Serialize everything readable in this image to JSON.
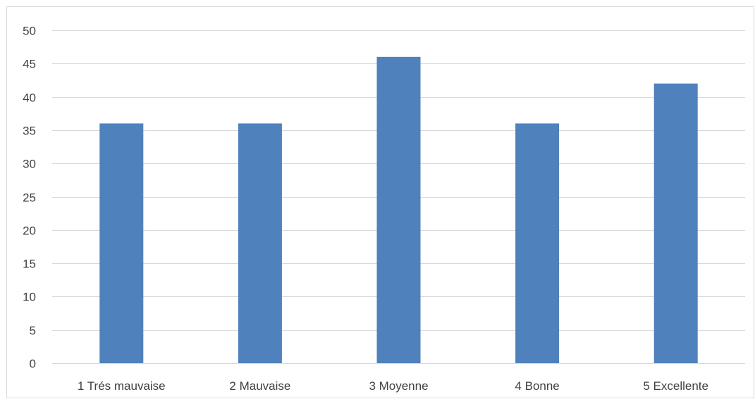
{
  "chart_data": {
    "type": "bar",
    "categories": [
      "1 Trés mauvaise",
      "2 Mauvaise",
      "3 Moyenne",
      "4 Bonne",
      "5 Excellente"
    ],
    "values": [
      36,
      36,
      46,
      36,
      42
    ],
    "ylim": [
      0,
      50
    ],
    "yticks": [
      0,
      5,
      10,
      15,
      20,
      25,
      30,
      35,
      40,
      45,
      50
    ],
    "grid": true,
    "legend": "none",
    "bar_color": "#4f81bd",
    "grid_color": "#d9d9d9",
    "label_color": "#404040"
  }
}
